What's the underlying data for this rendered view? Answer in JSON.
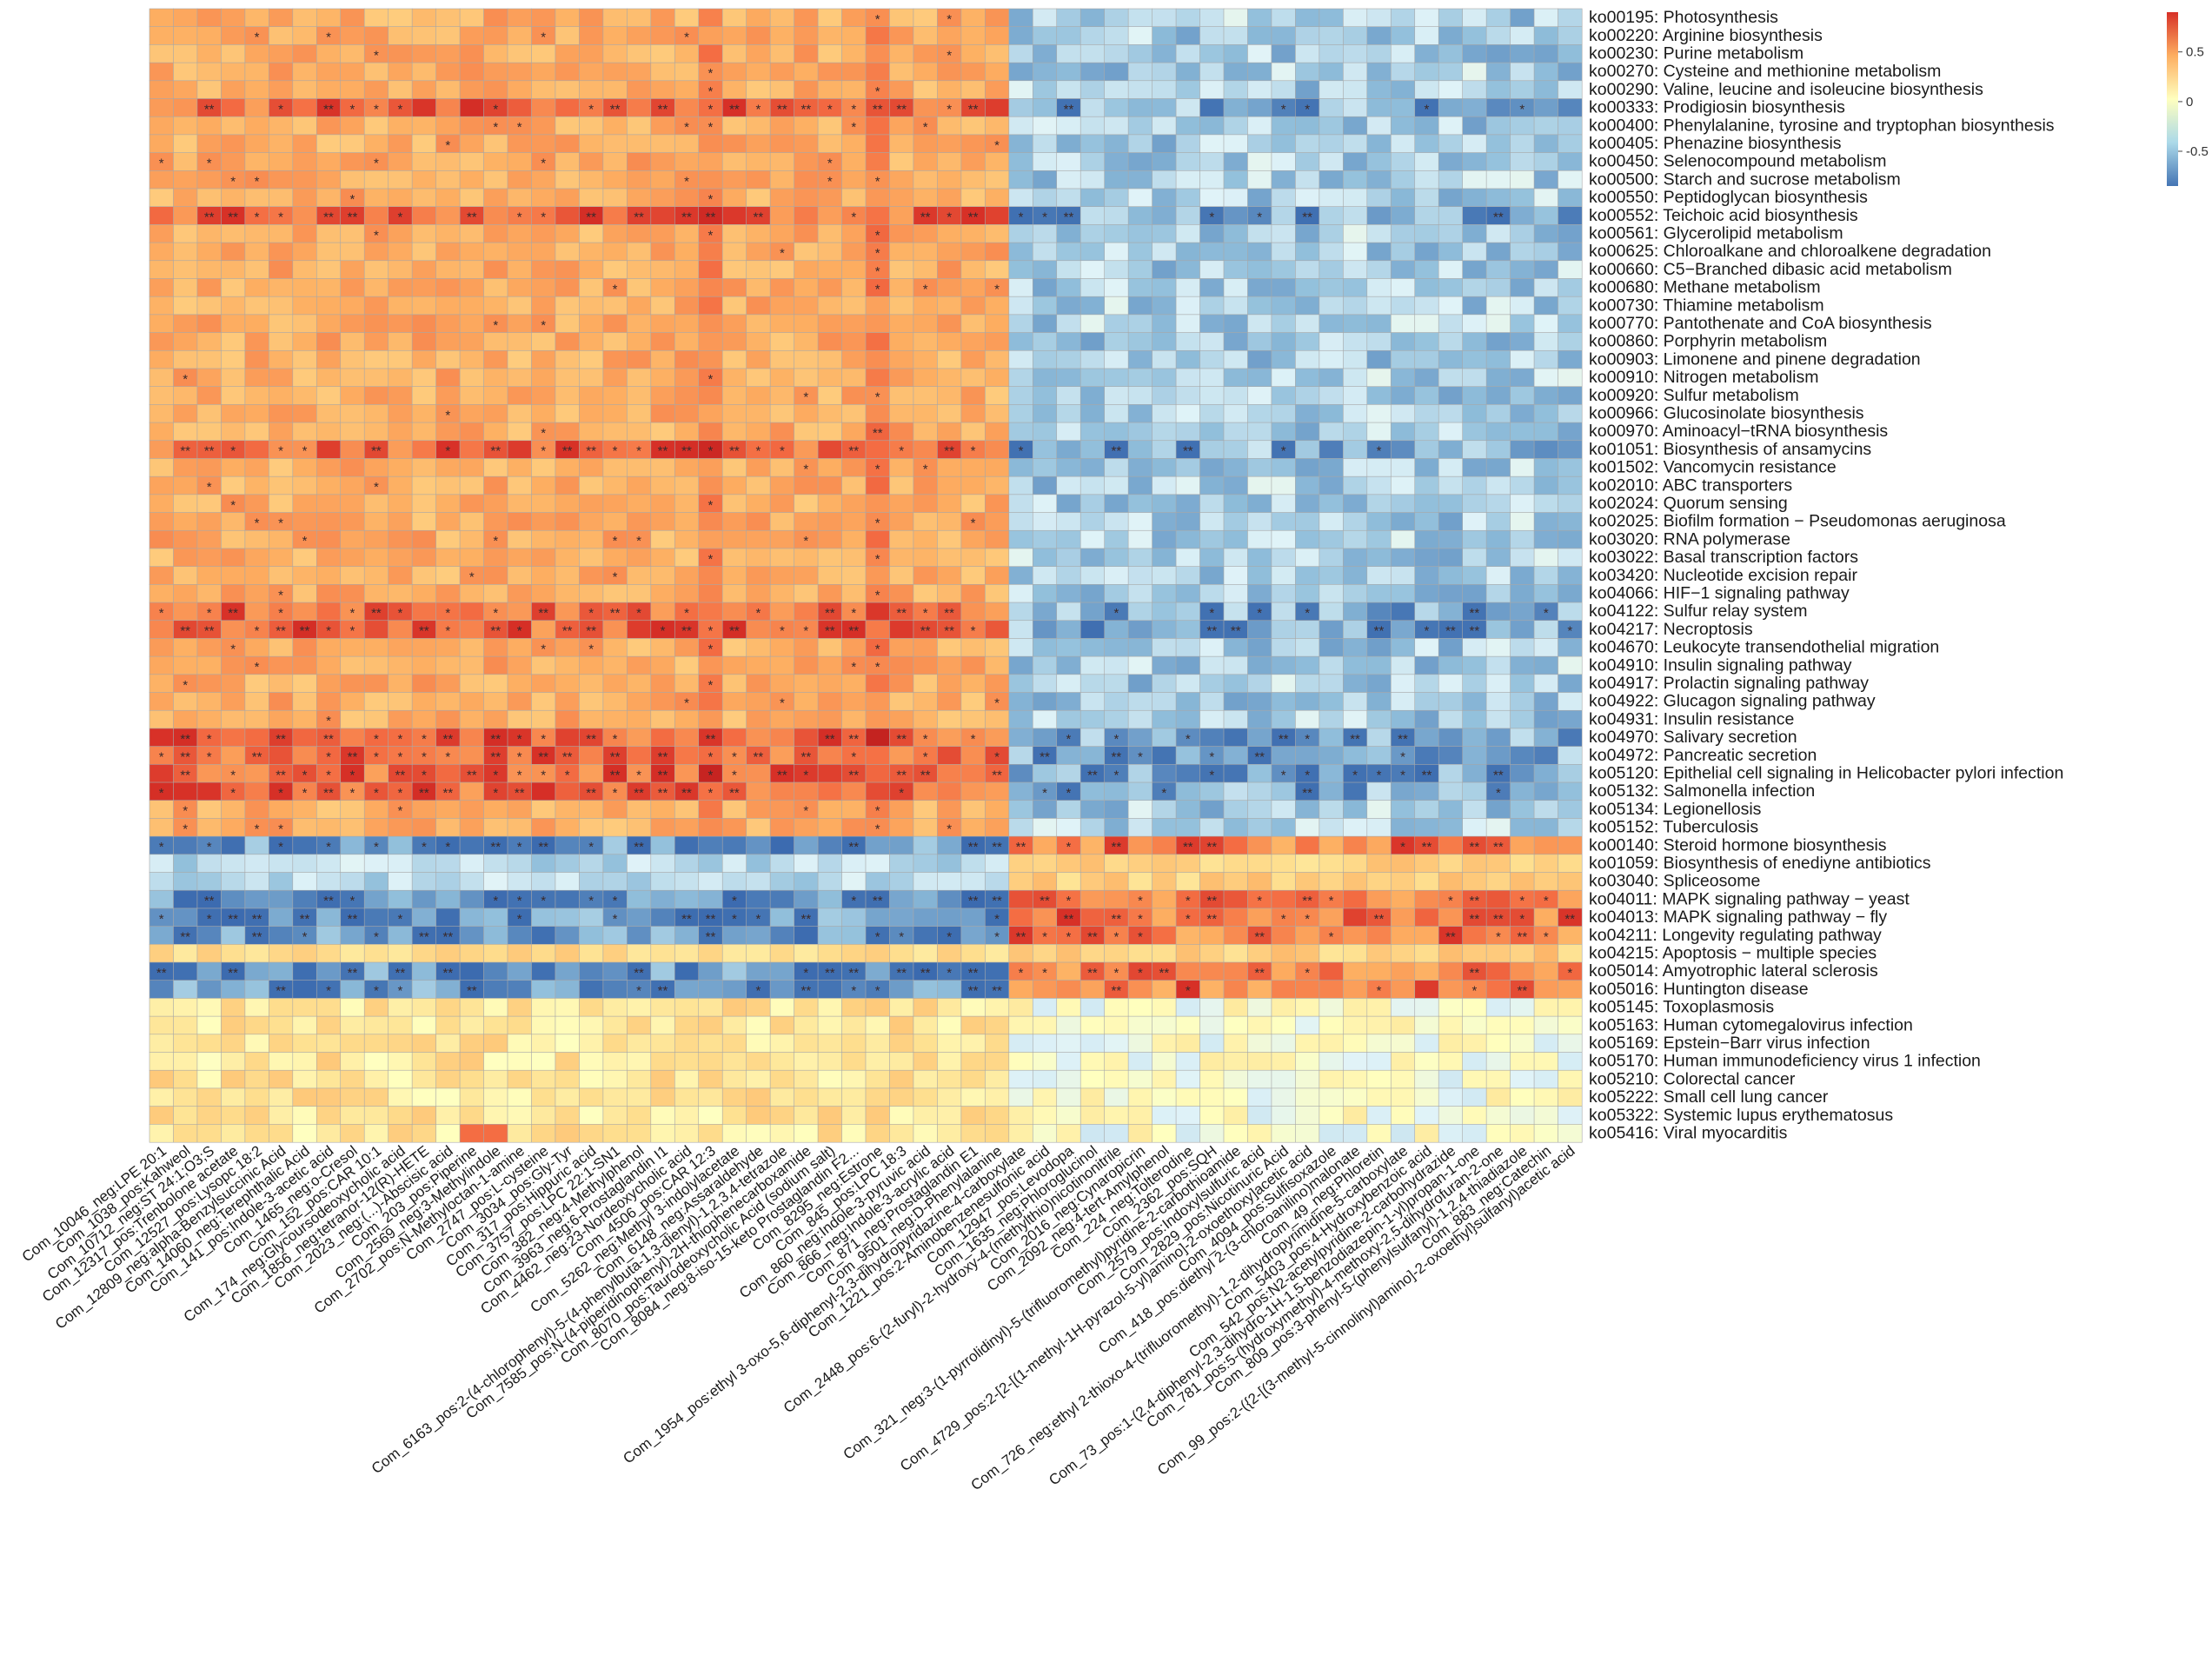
{
  "chart_data": {
    "type": "heatmap",
    "title": "",
    "value_range": [
      -0.85,
      0.9
    ],
    "legend": {
      "placement": "top-right",
      "ticks": [
        {
          "value": 0.5,
          "label": "0.5"
        },
        {
          "value": 0,
          "label": "0"
        },
        {
          "value": -0.5,
          "label": "-0.5"
        }
      ],
      "colors": {
        "high": "#d73027",
        "mid": "#ffffbf",
        "low": "#4575b4"
      }
    },
    "significance_symbols": {
      "p_lt_0.05": "*",
      "p_lt_0.01": "**"
    },
    "rows": [
      "ko00195: Photosynthesis",
      "ko00220: Arginine biosynthesis",
      "ko00230: Purine metabolism",
      "ko00270: Cysteine and methionine metabolism",
      "ko00290: Valine, leucine and isoleucine biosynthesis",
      "ko00333: Prodigiosin biosynthesis",
      "ko00400: Phenylalanine, tyrosine and tryptophan biosynthesis",
      "ko00405: Phenazine biosynthesis",
      "ko00450: Selenocompound metabolism",
      "ko00500: Starch and sucrose metabolism",
      "ko00550: Peptidoglycan biosynthesis",
      "ko00552: Teichoic acid biosynthesis",
      "ko00561: Glycerolipid metabolism",
      "ko00625: Chloroalkane and chloroalkene degradation",
      "ko00660: C5−Branched dibasic acid metabolism",
      "ko00680: Methane metabolism",
      "ko00730: Thiamine metabolism",
      "ko00770: Pantothenate and CoA biosynthesis",
      "ko00860: Porphyrin metabolism",
      "ko00903: Limonene and pinene degradation",
      "ko00910: Nitrogen metabolism",
      "ko00920: Sulfur metabolism",
      "ko00966: Glucosinolate biosynthesis",
      "ko00970: Aminoacyl−tRNA biosynthesis",
      "ko01051: Biosynthesis of ansamycins",
      "ko01502: Vancomycin resistance",
      "ko02010: ABC transporters",
      "ko02024: Quorum sensing",
      "ko02025: Biofilm formation − Pseudomonas aeruginosa",
      "ko03020: RNA polymerase",
      "ko03022: Basal transcription factors",
      "ko03420: Nucleotide excision repair",
      "ko04066: HIF−1 signaling pathway",
      "ko04122: Sulfur relay system",
      "ko04217: Necroptosis",
      "ko04670: Leukocyte transendothelial migration",
      "ko04910: Insulin signaling pathway",
      "ko04917: Prolactin signaling pathway",
      "ko04922: Glucagon signaling pathway",
      "ko04931: Insulin resistance",
      "ko04970: Salivary secretion",
      "ko04972: Pancreatic secretion",
      "ko05120: Epithelial cell signaling in Helicobacter pylori infection",
      "ko05132: Salmonella infection",
      "ko05134: Legionellosis",
      "ko05152: Tuberculosis",
      "ko00140: Steroid hormone biosynthesis",
      "ko01059: Biosynthesis of enediyne antibiotics",
      "ko03040: Spliceosome",
      "ko04011: MAPK signaling pathway − yeast",
      "ko04013: MAPK signaling pathway − fly",
      "ko04211: Longevity regulating pathway",
      "ko04215: Apoptosis − multiple species",
      "ko05014: Amyotrophic lateral sclerosis",
      "ko05016: Huntington disease",
      "ko05145: Toxoplasmosis",
      "ko05163: Human cytomegalovirus infection",
      "ko05169: Epstein−Barr virus infection",
      "ko05170: Human immunodeficiency virus 1 infection",
      "ko05210: Colorectal cancer",
      "ko05222: Small cell lung cancer",
      "ko05322: Systemic lupus erythematosus",
      "ko05416: Viral myocarditis"
    ],
    "columns": [
      "Com_10046_neg:LPE 20:1",
      "Com_1038_pos:Kahweol",
      "Com_10712_neg:ST 24:1;O3;S",
      "Com_12317_pos:Trenbolone acetate",
      "Com_12527_pos:Lysopc 18:2",
      "Com_12809_neg:alpha-Benzylsuccinic Acid",
      "Com_14060_neg:Terephthalic Acid",
      "Com_141_pos:Indole-3-acetic acid",
      "Com_1465_neg:o-Cresol",
      "Com_152_pos:CAR 10:1",
      "Com_174_neg:Glycoursodeoxycholic acid",
      "Com_1856_neg:tetranor-12(R)-HETE",
      "Com_2023_neg:(...)-Abscisic acid",
      "Com_203_pos:Piperine",
      "Com_2569_neg:3-Methylindole",
      "Com_2702_pos:N-Methyloctan-1-amine",
      "Com_2747_pos:L-cysteine",
      "Com_3034_pos:Gly-Tyr",
      "Com_317_pos:Hippuric acid",
      "Com_3757_pos:LPC 22:1-SN1",
      "Com_382_neg:4-Methylphenol",
      "Com_3963_neg:6-Prostaglandin I1",
      "Com_4462_neg:23-Nordeoxycholic acid",
      "Com_4506_pos:CAR 12:3",
      "Com_5262_neg:Methyl 3-indolylacetate",
      "Com_6148_neg:Assaraldehyde",
      "Com_6163_pos:2-(4-chlorophenyl)-5-(4-phenylbuta-1,3-dienyl)-1,2,3,4-tetrazole",
      "Com_7585_pos:N-(4-piperidinophenyl)-2H-thiophenecarboxamide",
      "Com_8070_pos:Taurodeoxycholic Acid (sodium salt)",
      "Com_8084_neg:8-iso-15-keto Prostaglandin F2...",
      "Com_8295_neg:Estrone",
      "Com_845_pos:LPC 18:3",
      "Com_860_neg:Indole-3-pyruvic acid",
      "Com_866_neg:Indole-3-acrylic acid",
      "Com_871_neg:Prostaglandin E1",
      "Com_9501_neg:D-Phenylalanine",
      "Com_1954_pos:ethyl 3-oxo-5,6-diphenyl-2,3-dihydropyridazine-4-carboxylate",
      "Com_1221_pos:2-Aminobenzenesulfonic acid",
      "Com_12947_pos:Levodopa",
      "Com_1635_neg:Phloroglucinol",
      "Com_2448_pos:6-(2-furyl)-2-hydroxy-4-(methylthio)nicotinonitrile",
      "Com_2016_neg:Cynaropicrin",
      "Com_2092_neg:4-tert-Amylphenol",
      "Com_224_neg:Tolterodine",
      "Com_2362_pos:SQH",
      "Com_321_neg:3-(1-pyrrolidinyl)-5-(trifluoromethyl)pyridine-2-carbothioamide",
      "Com_2579_pos:Indoxylsulfuric acid",
      "Com_2829_pos:Nicotinuric Acid",
      "Com_4729_pos:2-[2-[(1-methyl-1H-pyrazol-5-yl)amino]-2-oxoethoxy]acetic acid",
      "Com_4094_pos:Sulfisoxazole",
      "Com_418_pos:diethyl 2-(3-chloroanilino)malonate",
      "Com_49_neg:Phloretin",
      "Com_726_neg:ethyl 2-thioxo-4-(trifluoromethyl)-1,2-dihydropyrimidine-5-carboxylate",
      "Com_5403_pos:4-Hydroxybenzoic acid",
      "Com_542_pos:N2-acetylpyridine-2-carbohydrazide",
      "Com_73_pos:1-(2,4-diphenyl-2,3-dihydro-1H-1,5-benzodiazepin-1-yl)propan-1-one",
      "Com_781_pos:5-(hydroxymethyl)-4-methoxy-2,5-dihydrofuran-2-one",
      "Com_809_pos:3-phenyl-5-(phenylsulfanyl)-1,2,4-thiadiazole",
      "Com_883_neg:Catechin",
      "Com_99_pos:2-({2-[(3-methyl-5-cinnolinyl)amino]-2-oxoethyl}sulfanyl)acetic acid"
    ],
    "row_pattern_groups": [
      {
        "rows": "ko00195–ko05152",
        "left_block": "positive (orange/red)",
        "right_block": "negative (blue)"
      },
      {
        "rows": "ko00140–ko05016",
        "left_block": "negative (blue)",
        "right_block": "positive (red)"
      },
      {
        "rows": "ko05145–ko05416",
        "left_block": "weak",
        "right_block": "weak"
      }
    ]
  }
}
